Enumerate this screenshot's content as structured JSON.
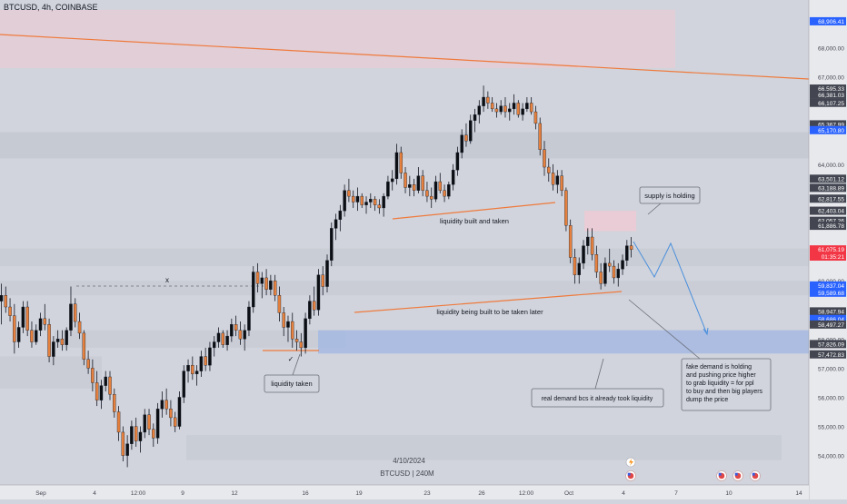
{
  "header": {
    "title": "BTCUSD, 4h, COINBASE"
  },
  "chart_data": {
    "type": "candlestick",
    "symbol": "BTCUSD",
    "interval": "4h",
    "exchange": "COINBASE",
    "watermark_date": "4/10/2024",
    "watermark_symbol": "BTCUSD | 240M",
    "ylim": [
      53000,
      69300
    ],
    "x_ticks": [
      "Sep",
      "4",
      "12:00",
      "9",
      "12",
      "16",
      "19",
      "23",
      "26",
      "12:00",
      "Oct",
      "4",
      "7",
      "10",
      "14"
    ],
    "y_ticks": [
      "54,000.00",
      "55,000.00",
      "56,000.00",
      "57,000.00",
      "58,000.00",
      "60,000.00",
      "61,000.00",
      "64,000.00",
      "67,000.00",
      "68,000.00"
    ],
    "price_tags": [
      {
        "text": "68,906.41",
        "price": 68906.41,
        "color": "#2962ff"
      },
      {
        "text": "66,595.33",
        "price": 66595.33,
        "color": "#434651"
      },
      {
        "text": "66,381.03",
        "price": 66381.03,
        "color": "#434651"
      },
      {
        "text": "66,107.25",
        "price": 66107.25,
        "color": "#434651"
      },
      {
        "text": "65,367.99",
        "price": 65367.99,
        "color": "#434651"
      },
      {
        "text": "65,170.80",
        "price": 65170.8,
        "color": "#2962ff"
      },
      {
        "text": "63,501.12",
        "price": 63501.12,
        "color": "#434651"
      },
      {
        "text": "63,188.89",
        "price": 63188.89,
        "color": "#434651"
      },
      {
        "text": "62,817.55",
        "price": 62817.55,
        "color": "#434651"
      },
      {
        "text": "62,403.04",
        "price": 62403.04,
        "color": "#434651"
      },
      {
        "text": "62,057.26",
        "price": 62057.26,
        "color": "#434651"
      },
      {
        "text": "61,886.78",
        "price": 61886.78,
        "color": "#434651"
      },
      {
        "text": "61,075.19",
        "price": 61075.19,
        "color": "#f23645"
      },
      {
        "text": "01:35:21",
        "price": 60830,
        "color": "#f23645"
      },
      {
        "text": "59,837.04",
        "price": 59837.04,
        "color": "#2962ff"
      },
      {
        "text": "59,589.68",
        "price": 59589.68,
        "color": "#2962ff"
      },
      {
        "text": "58,947.94",
        "price": 58947.94,
        "color": "#434651"
      },
      {
        "text": "58,686.04",
        "price": 58686.04,
        "color": "#2962ff"
      },
      {
        "text": "58,497.27",
        "price": 58497.27,
        "color": "#434651"
      },
      {
        "text": "57,826.09",
        "price": 57826.09,
        "color": "#434651"
      },
      {
        "text": "57,472.83",
        "price": 57472.83,
        "color": "#434651"
      }
    ],
    "candles_ohlc": [
      [
        59300,
        59900,
        58500,
        59500
      ],
      [
        59500,
        59800,
        58900,
        59100
      ],
      [
        59100,
        59400,
        58600,
        58800
      ],
      [
        58800,
        59200,
        57500,
        57900
      ],
      [
        57900,
        58600,
        57700,
        58400
      ],
      [
        58400,
        59300,
        58200,
        59100
      ],
      [
        59100,
        59300,
        58100,
        58300
      ],
      [
        58300,
        58600,
        57700,
        57900
      ],
      [
        57900,
        58500,
        57800,
        58300
      ],
      [
        58300,
        58900,
        58100,
        58700
      ],
      [
        58700,
        59200,
        58300,
        58500
      ],
      [
        58500,
        58700,
        57200,
        57400
      ],
      [
        57400,
        58100,
        57100,
        57900
      ],
      [
        57900,
        58300,
        57700,
        58000
      ],
      [
        58000,
        58300,
        57600,
        57800
      ],
      [
        57800,
        58400,
        57600,
        58300
      ],
      [
        58300,
        59800,
        58100,
        59200
      ],
      [
        59200,
        59400,
        58400,
        58600
      ],
      [
        58600,
        58900,
        58000,
        58200
      ],
      [
        58200,
        58300,
        57100,
        57300
      ],
      [
        57300,
        57600,
        56800,
        57000
      ],
      [
        57000,
        57300,
        56200,
        56500
      ],
      [
        56500,
        56900,
        55700,
        55900
      ],
      [
        55900,
        56600,
        55600,
        56400
      ],
      [
        56400,
        56900,
        56200,
        56700
      ],
      [
        56700,
        56900,
        55900,
        56100
      ],
      [
        56100,
        56300,
        55300,
        55500
      ],
      [
        55500,
        55700,
        54500,
        54800
      ],
      [
        54800,
        55000,
        53800,
        54000
      ],
      [
        54000,
        54700,
        53600,
        54400
      ],
      [
        54400,
        55200,
        54200,
        55000
      ],
      [
        55000,
        55300,
        54300,
        54500
      ],
      [
        54500,
        55000,
        54100,
        54800
      ],
      [
        54800,
        55600,
        54600,
        55400
      ],
      [
        55400,
        55600,
        54700,
        54900
      ],
      [
        54900,
        55100,
        54300,
        54600
      ],
      [
        54600,
        55800,
        54400,
        55600
      ],
      [
        55600,
        56200,
        55300,
        55900
      ],
      [
        55900,
        56300,
        55400,
        55600
      ],
      [
        55600,
        55900,
        55000,
        55300
      ],
      [
        55300,
        55500,
        54800,
        55000
      ],
      [
        55000,
        56200,
        54900,
        56000
      ],
      [
        56000,
        57100,
        55800,
        56900
      ],
      [
        56900,
        57300,
        56500,
        57100
      ],
      [
        57100,
        57400,
        56600,
        56800
      ],
      [
        56800,
        57100,
        56400,
        56900
      ],
      [
        56900,
        57600,
        56700,
        57400
      ],
      [
        57400,
        57700,
        56900,
        57100
      ],
      [
        57100,
        57900,
        56900,
        57700
      ],
      [
        57700,
        58100,
        57400,
        57900
      ],
      [
        57900,
        58400,
        57700,
        58200
      ],
      [
        58200,
        58300,
        57700,
        57800
      ],
      [
        57800,
        58300,
        57600,
        58100
      ],
      [
        58100,
        58700,
        57900,
        58500
      ],
      [
        58500,
        58800,
        58100,
        58300
      ],
      [
        58300,
        58600,
        57800,
        58000
      ],
      [
        58000,
        58500,
        57600,
        58300
      ],
      [
        58300,
        59300,
        58100,
        59100
      ],
      [
        59100,
        60500,
        58900,
        60300
      ],
      [
        60300,
        60600,
        59600,
        59900
      ],
      [
        59900,
        60300,
        59400,
        60100
      ],
      [
        60100,
        60400,
        59500,
        59700
      ],
      [
        59700,
        60200,
        59500,
        60000
      ],
      [
        60000,
        60200,
        59300,
        59500
      ],
      [
        59500,
        59800,
        58600,
        58900
      ],
      [
        58900,
        59100,
        58100,
        58400
      ],
      [
        58400,
        58800,
        57900,
        58600
      ],
      [
        58600,
        58900,
        57700,
        58000
      ],
      [
        58000,
        58300,
        57600,
        57900
      ],
      [
        57900,
        58200,
        57400,
        57700
      ],
      [
        57700,
        58900,
        57500,
        58700
      ],
      [
        58700,
        59500,
        58500,
        59300
      ],
      [
        59300,
        59800,
        58800,
        59000
      ],
      [
        59000,
        60400,
        58800,
        60200
      ],
      [
        60200,
        60500,
        59500,
        59800
      ],
      [
        59800,
        60900,
        59600,
        60700
      ],
      [
        60700,
        62000,
        60500,
        61800
      ],
      [
        61800,
        62300,
        61400,
        62100
      ],
      [
        62100,
        62600,
        61700,
        62400
      ],
      [
        62400,
        63300,
        62200,
        63100
      ],
      [
        63100,
        63500,
        62700,
        62900
      ],
      [
        62900,
        63100,
        62500,
        62700
      ],
      [
        62700,
        63200,
        62400,
        62900
      ],
      [
        62900,
        63000,
        62500,
        62600
      ],
      [
        62600,
        62900,
        62300,
        62700
      ],
      [
        62700,
        63000,
        62500,
        62800
      ],
      [
        62800,
        62900,
        62400,
        62600
      ],
      [
        62600,
        62800,
        62300,
        62500
      ],
      [
        62500,
        63000,
        62200,
        62900
      ],
      [
        62900,
        63600,
        62800,
        63400
      ],
      [
        63400,
        63800,
        63100,
        63500
      ],
      [
        63500,
        64700,
        63300,
        64400
      ],
      [
        64400,
        64600,
        63500,
        63700
      ],
      [
        63700,
        63900,
        63000,
        63200
      ],
      [
        63200,
        63600,
        62900,
        63300
      ],
      [
        63300,
        63500,
        62900,
        63100
      ],
      [
        63100,
        63900,
        63000,
        63600
      ],
      [
        63600,
        63800,
        62900,
        63100
      ],
      [
        63100,
        63400,
        62700,
        62900
      ],
      [
        62900,
        63200,
        62500,
        62800
      ],
      [
        62800,
        63600,
        62700,
        63400
      ],
      [
        63400,
        63700,
        63000,
        63100
      ],
      [
        63100,
        63300,
        62700,
        62900
      ],
      [
        62900,
        63400,
        62800,
        63300
      ],
      [
        63300,
        64000,
        63100,
        63800
      ],
      [
        63800,
        64600,
        63600,
        64400
      ],
      [
        64400,
        65200,
        64200,
        65000
      ],
      [
        65000,
        65400,
        64600,
        64800
      ],
      [
        64800,
        65700,
        64700,
        65500
      ],
      [
        65500,
        65900,
        65100,
        65700
      ],
      [
        65700,
        66200,
        65400,
        66000
      ],
      [
        66000,
        66700,
        65800,
        66300
      ],
      [
        66300,
        66500,
        65900,
        66100
      ],
      [
        66100,
        66300,
        65800,
        65900
      ],
      [
        65900,
        66100,
        65600,
        65800
      ],
      [
        65800,
        66200,
        65700,
        66000
      ],
      [
        66000,
        66300,
        65600,
        65800
      ],
      [
        65800,
        66100,
        65500,
        65900
      ],
      [
        65900,
        66400,
        65700,
        66100
      ],
      [
        66100,
        66200,
        65600,
        65700
      ],
      [
        65700,
        66100,
        65500,
        65900
      ],
      [
        65900,
        66300,
        65800,
        66100
      ],
      [
        66100,
        66300,
        65700,
        65800
      ],
      [
        65800,
        66000,
        65200,
        65400
      ],
      [
        65400,
        65600,
        64300,
        64500
      ],
      [
        64500,
        64800,
        63600,
        63900
      ],
      [
        63900,
        64200,
        63400,
        63700
      ],
      [
        63700,
        64000,
        63100,
        63300
      ],
      [
        63300,
        63800,
        63000,
        63600
      ],
      [
        63600,
        63800,
        62900,
        63100
      ],
      [
        63100,
        63200,
        61700,
        61900
      ],
      [
        61900,
        62100,
        60600,
        60800
      ],
      [
        60800,
        61100,
        59900,
        60200
      ],
      [
        60200,
        60800,
        59900,
        60600
      ],
      [
        60600,
        61400,
        60400,
        61200
      ],
      [
        61200,
        61800,
        60900,
        61500
      ],
      [
        61500,
        61800,
        60700,
        60900
      ],
      [
        60900,
        61200,
        60100,
        60300
      ],
      [
        60300,
        60600,
        59700,
        59900
      ],
      [
        59900,
        60800,
        59800,
        60600
      ],
      [
        60600,
        61100,
        60300,
        60500
      ],
      [
        60500,
        60700,
        59900,
        60100
      ],
      [
        60100,
        60600,
        59800,
        60400
      ],
      [
        60400,
        60900,
        60200,
        60700
      ],
      [
        60700,
        61400,
        60500,
        61200
      ],
      [
        61200,
        61500,
        60800,
        61075
      ]
    ],
    "horizontal_zones": [
      {
        "from": 67300,
        "to": 69300,
        "x0": 0,
        "x1": 743,
        "color": "#f0c8d2",
        "opacity": 0.55
      },
      {
        "from": 64200,
        "to": 65100,
        "x0": 0,
        "x1": 890,
        "color": "#bcc0c9",
        "opacity": 0.5
      },
      {
        "from": 60500,
        "to": 61100,
        "x0": 0,
        "x1": 890,
        "color": "#c1c5ce",
        "opacity": 0.5
      },
      {
        "from": 59500,
        "to": 60000,
        "x0": 0,
        "x1": 890,
        "color": "#c1c5ce",
        "opacity": 0.45
      },
      {
        "from": 57700,
        "to": 58300,
        "x0": 60,
        "x1": 380,
        "color": "#c1c5ce",
        "opacity": 0.45
      },
      {
        "from": 56300,
        "to": 57400,
        "x0": 0,
        "x1": 112,
        "color": "#c1c5ce",
        "opacity": 0.45
      },
      {
        "from": 57500,
        "to": 58300,
        "x0": 350,
        "x1": 890,
        "color": "#9fb6e3",
        "opacity": 0.75
      },
      {
        "from": 53850,
        "to": 54700,
        "x0": 205,
        "x1": 860,
        "color": "#c1c5ce",
        "opacity": 0.5
      },
      {
        "from": 61700,
        "to": 62400,
        "x0": 643,
        "x1": 700,
        "color": "#efc9d3",
        "opacity": 0.8
      }
    ],
    "annotations": [
      {
        "text": "supply is holding",
        "type": "callout"
      },
      {
        "text": "liquidity built and taken",
        "type": "label"
      },
      {
        "text": "liquidity being built to be taken later",
        "type": "label"
      },
      {
        "text": "liquidity taken",
        "type": "callout"
      },
      {
        "text": "real demand bcs it already took liquidity",
        "type": "callout"
      },
      {
        "text": "fake demand is holding and pushing price higher to grab liquidity = for ppl to buy and then big players dump the price",
        "type": "callout"
      },
      {
        "text": "x",
        "type": "marker"
      },
      {
        "text": "✓",
        "type": "marker"
      }
    ],
    "colors": {
      "bull": "#0b0f14",
      "bear": "#e5803e",
      "trendline": "#ef7a3d",
      "projection": "#4a8fdc",
      "demand_zone": "#9fb6e3",
      "supply_zone": "#f0c8d2",
      "background": "#d1d4dc",
      "axis_text": "#434651"
    }
  }
}
